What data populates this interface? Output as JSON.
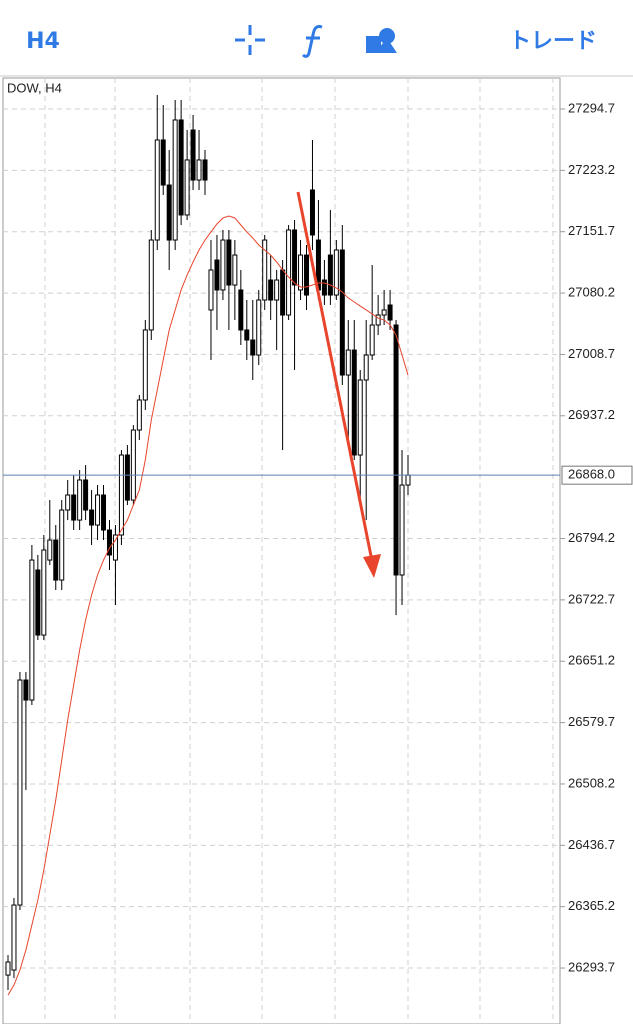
{
  "toolbar": {
    "timeframe": "H4",
    "trade": "トレード"
  },
  "chart_data": {
    "type": "candlestick",
    "title": "DOW, H4",
    "open": [
      26285.5,
      26291.4,
      26367.1,
      26629.3,
      26606.0,
      26757.5,
      26681.7,
      26769.1,
      26792.4,
      26745.8,
      26827.4,
      26844.9,
      26815.7,
      26862.4,
      26827.4,
      26809.9,
      26844.9,
      26804.1,
      26769.1,
      26798.3,
      26891.5,
      26839.0,
      26920.6,
      26955.6,
      27037.2,
      27142.0,
      27258.6,
      27206.1,
      27142.0,
      27281.9,
      27171.2,
      27270.2,
      27211.9,
      27235.3,
      27060.5,
      27118.7,
      27083.8,
      27142.0,
      27089.6,
      27083.8,
      27037.2,
      27025.5,
      27008.0,
      27072.1,
      27095.4,
      27072.1,
      27107.1,
      27054.6,
      27153.7,
      27083.8,
      27124.5,
      27200.3,
      27142.0,
      27095.4,
      27124.5,
      27077.9,
      27130.4,
      26984.7,
      27013.8,
      26891.5,
      26978.9,
      27008.0,
      27043.0,
      27054.6,
      27066.3,
      27043.0,
      26751.7,
      26856.5
    ],
    "high": [
      26308.8,
      26375.3,
      26638.6,
      26638.6,
      26786.6,
      26775.0,
      26798.3,
      26839.0,
      26809.9,
      26839.0,
      26862.4,
      26868.2,
      26874.0,
      26879.8,
      26850.7,
      26856.5,
      26856.5,
      26815.7,
      26809.9,
      26897.3,
      26903.1,
      26926.4,
      26961.4,
      27048.8,
      27153.7,
      27311.0,
      27299.3,
      27246.9,
      27305.2,
      27305.2,
      27270.2,
      27287.7,
      27270.2,
      27246.9,
      27142.0,
      27147.9,
      27153.7,
      27153.7,
      27142.0,
      27107.1,
      27072.1,
      27072.1,
      27083.8,
      27147.9,
      27124.5,
      27107.1,
      27118.7,
      27159.5,
      27165.3,
      27142.0,
      27136.2,
      27258.6,
      27188.6,
      27118.7,
      27177.0,
      27142.0,
      27159.5,
      27048.8,
      27048.8,
      26990.5,
      27048.8,
      27112.9,
      27077.9,
      27083.8,
      27083.8,
      27048.8,
      26897.3,
      26891.5
    ],
    "low": [
      26268.1,
      26282.0,
      26361.3,
      26501.1,
      26600.2,
      26675.9,
      26675.9,
      26763.3,
      26734.2,
      26734.2,
      26815.7,
      26804.1,
      26804.1,
      26815.7,
      26786.6,
      26792.4,
      26792.4,
      26757.5,
      26716.7,
      26786.6,
      26833.2,
      26833.2,
      26909.0,
      26943.9,
      27025.5,
      27130.4,
      27194.5,
      27107.1,
      27130.4,
      27159.5,
      27165.3,
      27200.3,
      27200.3,
      27194.5,
      27002.2,
      27037.2,
      27072.1,
      27037.2,
      27048.8,
      27019.7,
      27002.2,
      26978.9,
      26996.4,
      27060.5,
      27048.8,
      27013.8,
      26897.3,
      27048.8,
      26990.5,
      27072.1,
      27060.5,
      27130.4,
      27072.1,
      27066.3,
      27066.3,
      27072.1,
      26973.1,
      26909.0,
      26885.7,
      26839.0,
      26815.7,
      27002.2,
      27031.3,
      27043.0,
      27037.2,
      26705.0,
      26716.7,
      26844.9
    ],
    "close": [
      26300.7,
      26367.1,
      26629.3,
      26606.0,
      26769.1,
      26681.7,
      26780.8,
      26792.4,
      26745.8,
      26827.4,
      26844.9,
      26815.7,
      26862.4,
      26827.4,
      26809.9,
      26844.9,
      26804.1,
      26775.0,
      26798.3,
      26891.5,
      26839.0,
      26920.6,
      26955.6,
      27037.2,
      27142.0,
      27258.6,
      27206.1,
      27142.0,
      27281.9,
      27171.2,
      27235.3,
      27211.9,
      27235.3,
      27211.9,
      27107.1,
      27083.8,
      27142.0,
      27089.6,
      27124.5,
      27037.2,
      27025.5,
      27008.0,
      27072.1,
      27142.0,
      27072.1,
      27095.4,
      27054.6,
      27153.7,
      27089.6,
      27124.5,
      27077.9,
      27147.9,
      27083.8,
      27077.9,
      27077.9,
      27130.4,
      26984.7,
      27013.8,
      26891.5,
      26978.9,
      27008.0,
      27043.0,
      27054.6,
      27060.5,
      27048.8,
      26751.7,
      26856.5,
      26868.0
    ],
    "moving_average": {
      "color": "#e8452c",
      "values": [
        26262.2,
        26273.9,
        26291.4,
        26314.7,
        26343.8,
        26372.9,
        26407.9,
        26448.7,
        26489.5,
        26536.1,
        26582.7,
        26623.5,
        26664.3,
        26699.2,
        26728.3,
        26751.7,
        26769.1,
        26783.1,
        26792.4,
        26804.1,
        26815.7,
        26833.2,
        26850.7,
        26885.7,
        26932.3,
        26967.2,
        27002.2,
        27037.2,
        27060.5,
        27083.8,
        27101.2,
        27116.4,
        27130.4,
        27142.0,
        27151.4,
        27160.7,
        27167.7,
        27170.0,
        27167.7,
        27159.5,
        27151.4,
        27144.4,
        27136.2,
        27130.4,
        27124.5,
        27116.4,
        27107.1,
        27098.9,
        27091.9,
        27087.3,
        27087.3,
        27089.6,
        27091.9,
        27091.9,
        27089.6,
        27086.1,
        27081.4,
        27074.4,
        27069.8,
        27065.1,
        27060.5,
        27055.8,
        27051.1,
        27048.8,
        27043.0,
        27031.3,
        27008.0,
        26984.7
      ]
    },
    "current_price": {
      "value": 26868.0,
      "label": "26868.0"
    },
    "ylim": [
      26228.5,
      27330.8
    ],
    "yticks": [
      26293.7,
      26365.2,
      26436.7,
      26508.2,
      26579.7,
      26651.2,
      26722.7,
      26794.2,
      26937.2,
      27008.7,
      27080.2,
      27151.7,
      27223.2,
      27294.7
    ],
    "grid": true,
    "up_color": "#ffffff",
    "down_color": "#000000",
    "price_line_color": "#5b7fb0"
  }
}
